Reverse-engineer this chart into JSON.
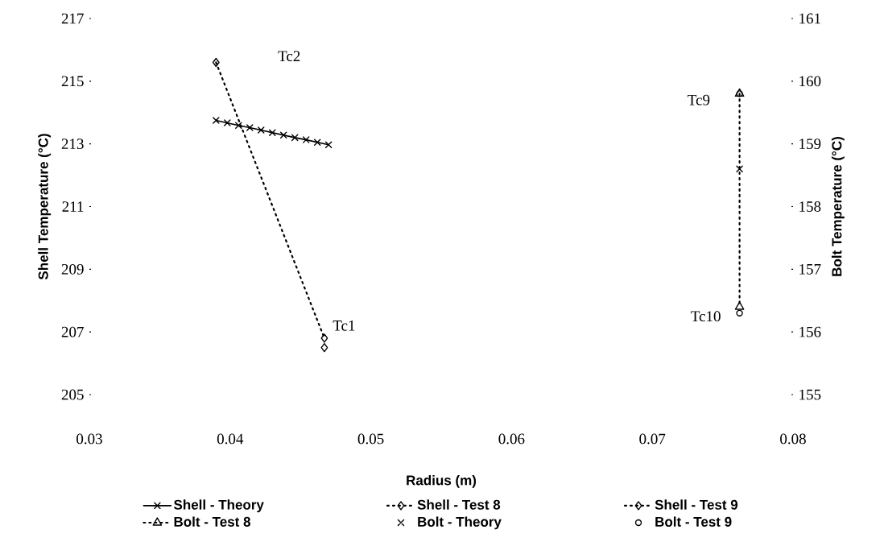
{
  "chart_data": {
    "type": "line",
    "xlabel": "Radius (m)",
    "ylabel": "Shell Temperature (°C)",
    "y2label": "Bolt Temperature (°C)",
    "xlim": [
      0.03,
      0.08
    ],
    "xticks": [
      0.03,
      0.04,
      0.05,
      0.06,
      0.07,
      0.08
    ],
    "ylim": [
      205,
      217
    ],
    "yticks": [
      205,
      207,
      209,
      211,
      213,
      215,
      217
    ],
    "y2lim": [
      155,
      161
    ],
    "y2ticks": [
      155,
      156,
      157,
      158,
      159,
      160,
      161
    ],
    "grid": false,
    "legend": "bottom",
    "annotations": [
      "Tc2",
      "Tc1",
      "Tc9",
      "Tc10"
    ],
    "series": [
      {
        "name": "Shell - Theory",
        "color": "#000000",
        "marker": "cross",
        "line_style": "solid",
        "x": [
          0.039,
          0.0398,
          0.0406,
          0.0414,
          0.0422,
          0.043,
          0.0438,
          0.0446,
          0.0454,
          0.0462,
          0.047
        ],
        "values": [
          213.75,
          213.67,
          213.59,
          213.52,
          213.44,
          213.36,
          213.28,
          213.2,
          213.13,
          213.05,
          212.97
        ]
      },
      {
        "name": "Shell - Test 8",
        "color": "#000000",
        "marker": "diamond",
        "line_style": "dotted",
        "x": [
          0.0467
        ],
        "values": [
          206.5
        ]
      },
      {
        "name": "Shell - Test 9",
        "color": "#000000",
        "marker": "diamond",
        "line_style": "dotted",
        "x": [
          0.039,
          0.0467
        ],
        "values": [
          215.6,
          206.8
        ]
      },
      {
        "name": "Bolt - Test 8",
        "color": "#000000",
        "axis": "y2",
        "marker": "triangle",
        "line_style": "dotted",
        "x": [
          0.0762,
          0.0762
        ],
        "values": [
          159.8,
          156.4
        ]
      },
      {
        "name": "Bolt - Theory",
        "type": "scatter",
        "color": "#000000",
        "axis": "y2",
        "marker": "cross",
        "x": [
          0.0762
        ],
        "values": [
          158.6
        ]
      },
      {
        "name": "Bolt - Test 9",
        "type": "scatter",
        "color": "#000000",
        "axis": "y2",
        "marker": "circle",
        "x": [
          0.0762,
          0.0762
        ],
        "values": [
          159.8,
          156.3
        ]
      }
    ]
  }
}
